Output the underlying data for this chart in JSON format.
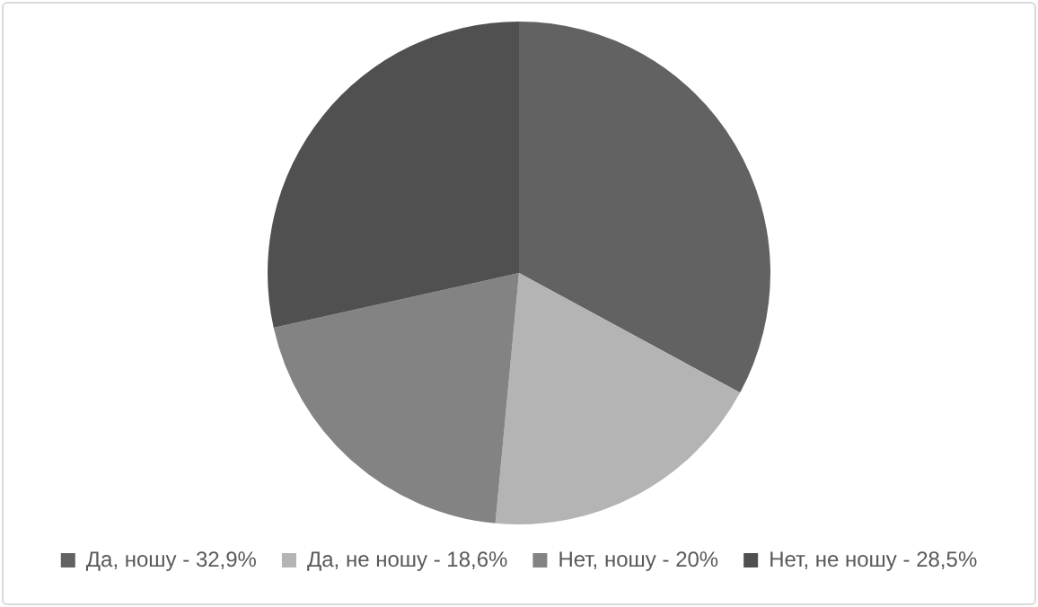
{
  "chart_data": {
    "type": "pie",
    "categories": [
      "Да, ношу - 32,9%",
      "Да, не ношу - 18,6%",
      "Нет, ношу - 20%",
      "Нет, не ношу - 28,5%"
    ],
    "values": [
      32.9,
      18.6,
      20,
      28.5
    ],
    "colors": [
      "#626262",
      "#b4b4b4",
      "#838383",
      "#505050"
    ],
    "legend": "bottom"
  }
}
